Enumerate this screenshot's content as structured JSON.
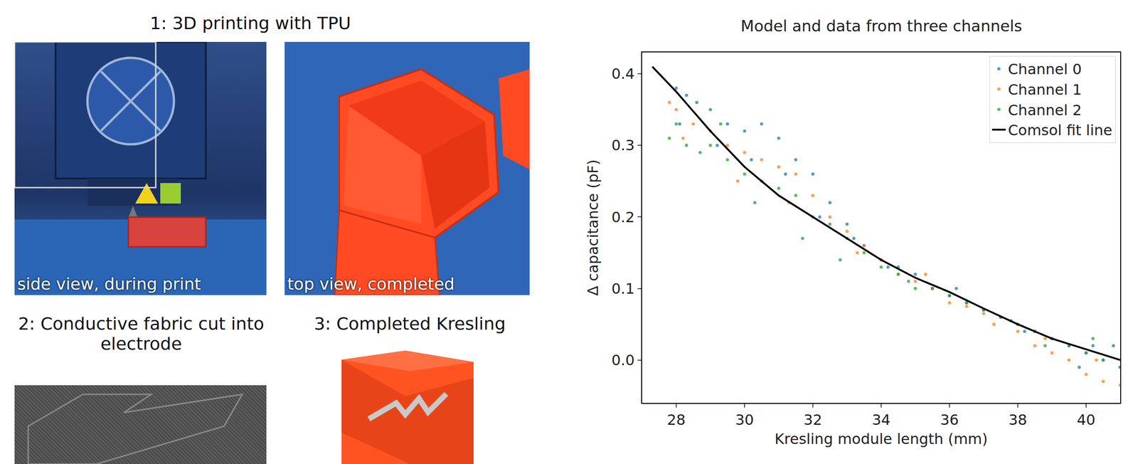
{
  "panels": {
    "step1_title": "1: 3D printing with TPU",
    "step1_left_caption": "side view, during print",
    "step1_right_caption": "top view, completed",
    "step2_title": "2: Conductive fabric cut into electrode",
    "step3_title": "3: Completed Kresling"
  },
  "chart_data": {
    "type": "scatter",
    "title": "Model and data from three channels",
    "x_label": "Kresling module length (mm)",
    "y_label": "Δ capacitance (pF)",
    "xlim": [
      27,
      41
    ],
    "ylim": [
      -0.06,
      0.43
    ],
    "xticks": [
      28,
      30,
      32,
      34,
      36,
      38,
      40
    ],
    "yticks": [
      {
        "value": 0,
        "label": "0.0"
      },
      0.1,
      0.2,
      0.3,
      0.4
    ],
    "grid": false,
    "legend": "top right",
    "series": [
      {
        "name": "Channel 0",
        "color": "#1f77b4",
        "marker": "circle",
        "x": [
          28,
          28.3,
          28.6,
          29,
          29.5,
          30,
          30.5,
          31,
          31.5,
          32,
          32.5,
          33,
          33.5,
          34,
          34.5,
          35,
          35.5,
          36,
          36.5,
          37,
          37.5,
          38,
          38.5,
          39,
          39.5,
          40,
          40.5,
          41,
          28.1,
          29.2,
          30.2,
          31.2,
          32.2,
          33.2,
          34.2,
          36.2,
          38.2,
          40.2,
          40.8,
          39.8
        ],
        "values": [
          0.38,
          0.37,
          0.36,
          0.35,
          0.33,
          0.32,
          0.33,
          0.31,
          0.28,
          0.26,
          0.22,
          0.19,
          0.16,
          0.14,
          0.13,
          0.12,
          0.1,
          0.09,
          0.08,
          0.07,
          0.06,
          0.05,
          0.04,
          0.03,
          0.02,
          0.01,
          0.0,
          -0.01,
          0.33,
          0.3,
          0.28,
          0.26,
          0.2,
          0.17,
          0.13,
          0.1,
          0.04,
          0.02,
          0.02,
          -0.01
        ]
      },
      {
        "name": "Channel 1",
        "color": "#ff7f0e",
        "marker": "circle",
        "x": [
          27.8,
          28,
          28.5,
          29,
          29.5,
          30,
          30.5,
          31,
          31.5,
          32,
          32.5,
          33,
          33.5,
          34,
          34.5,
          35,
          35.5,
          36,
          36.5,
          37,
          37.5,
          38,
          38.5,
          39,
          39.5,
          40,
          40.5,
          41,
          28.2,
          29.8,
          31.3,
          33.3,
          35.3,
          37.3,
          38.8,
          40.3
        ],
        "values": [
          0.36,
          0.35,
          0.33,
          0.32,
          0.3,
          0.29,
          0.28,
          0.27,
          0.26,
          0.23,
          0.2,
          0.18,
          0.16,
          0.14,
          0.12,
          0.11,
          0.1,
          0.08,
          0.075,
          0.065,
          0.06,
          0.04,
          0.02,
          0.01,
          0.0,
          -0.02,
          -0.03,
          -0.035,
          0.31,
          0.25,
          0.22,
          0.15,
          0.12,
          0.05,
          0.03,
          0.0
        ]
      },
      {
        "name": "Channel 2",
        "color": "#2ca02c",
        "marker": "circle",
        "x": [
          27.8,
          28,
          28.3,
          28.7,
          29,
          29.5,
          30,
          30.5,
          31,
          31.5,
          32,
          32.5,
          33,
          33.5,
          34,
          34.5,
          35,
          35.5,
          36,
          36.5,
          37,
          37.5,
          38,
          38.5,
          38.8,
          39,
          39.5,
          40,
          40.5,
          41,
          29.3,
          30.3,
          31.7,
          32.8,
          34.8,
          37.8,
          40.2
        ],
        "values": [
          0.31,
          0.33,
          0.3,
          0.29,
          0.3,
          0.28,
          0.26,
          0.25,
          0.24,
          0.23,
          0.2,
          0.19,
          0.17,
          0.15,
          0.13,
          0.12,
          0.1,
          0.1,
          0.09,
          0.08,
          0.07,
          0.06,
          0.05,
          0.04,
          0.02,
          0.03,
          0.02,
          0.01,
          0.0,
          -0.01,
          0.33,
          0.22,
          0.17,
          0.14,
          0.11,
          0.055,
          0.03
        ]
      },
      {
        "name": "Comsol fit line",
        "color": "#000000",
        "type": "line",
        "line_style": "solid",
        "x": [
          27.3,
          28,
          29,
          30,
          31,
          32,
          33,
          34,
          35,
          36,
          37,
          38,
          39,
          40,
          41
        ],
        "values": [
          0.41,
          0.375,
          0.32,
          0.27,
          0.23,
          0.2,
          0.17,
          0.14,
          0.115,
          0.095,
          0.072,
          0.05,
          0.03,
          0.015,
          0.0
        ]
      }
    ]
  }
}
